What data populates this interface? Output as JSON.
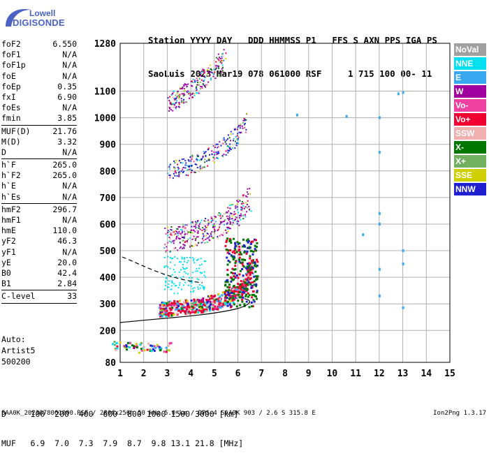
{
  "logo": {
    "top": "Lowell",
    "bottom": "DIGISONDE"
  },
  "header": {
    "line1": "Station YYYY DAY   DDD HHMMSS P1   FFS S AXN PPS IGA PS",
    "line2": "SaoLuis 2023 Mar19 078 061000 RSF     1 715 100 00- 11"
  },
  "params": [
    {
      "name": "foF2",
      "value": "6.550"
    },
    {
      "name": "foF1",
      "value": "N/A"
    },
    {
      "name": "foF1p",
      "value": "N/A"
    },
    {
      "name": "foE",
      "value": "N/A"
    },
    {
      "name": "foEp",
      "value": "0.35"
    },
    {
      "name": "fxI",
      "value": "6.90"
    },
    {
      "name": "foEs",
      "value": "N/A"
    },
    {
      "name": "fmin",
      "value": "3.85"
    },
    {
      "sep": true
    },
    {
      "name": "MUF(D)",
      "value": "21.76"
    },
    {
      "name": "M(D)",
      "value": "3.32"
    },
    {
      "name": "D",
      "value": "N/A"
    },
    {
      "sep": true
    },
    {
      "name": "h`F",
      "value": "265.0"
    },
    {
      "name": "h`F2",
      "value": "265.0"
    },
    {
      "name": "h`E",
      "value": "N/A"
    },
    {
      "name": "h`Es",
      "value": "N/A"
    },
    {
      "sep": true
    },
    {
      "name": "hmF2",
      "value": "296.7"
    },
    {
      "name": "hmF1",
      "value": "N/A"
    },
    {
      "name": "hmE",
      "value": "110.0"
    },
    {
      "name": "yF2",
      "value": "46.3"
    },
    {
      "name": "yF1",
      "value": "N/A"
    },
    {
      "name": "yE",
      "value": "20.0"
    },
    {
      "name": "B0",
      "value": "42.4"
    },
    {
      "name": "B1",
      "value": "2.84"
    },
    {
      "sep": true
    },
    {
      "name": "C-level",
      "value": "33"
    },
    {
      "sep": true
    }
  ],
  "auto": {
    "line1": "Auto:",
    "line2": "Artist5",
    "line3": "500200"
  },
  "legend": [
    {
      "label": "NoVal",
      "color": "#a0a0a0"
    },
    {
      "label": "NNE",
      "color": "#00e0f0"
    },
    {
      "label": "E",
      "color": "#39a8f0"
    },
    {
      "label": "W",
      "color": "#a000a0"
    },
    {
      "label": "Vo-",
      "color": "#f040a0"
    },
    {
      "label": "Vo+",
      "color": "#f00030"
    },
    {
      "label": "SSW",
      "color": "#f0b0b0"
    },
    {
      "label": "X-",
      "color": "#007800"
    },
    {
      "label": "X+",
      "color": "#70b060"
    },
    {
      "label": "SSE",
      "color": "#d0d000"
    },
    {
      "label": "NNW",
      "color": "#2020d0"
    }
  ],
  "bottom": {
    "line1": "D     100  200  400  600  800 1000 1500 3000 [km]",
    "line2": "MUF   6.9  7.0  7.3  7.9  8.7  9.8 13.1 21.8 [MHz]"
  },
  "footer": {
    "left": "SAA0K_2023078061000.RSF / 280fx256h 50 kHz 5.0 km / DPS-4 SAA0K 903 / 2.6 S 315.8 E",
    "right": "Ion2Png 1.3.17"
  },
  "chart_data": {
    "type": "scatter",
    "x_ticks": [
      1,
      2,
      3,
      4,
      5,
      6,
      7,
      8,
      9,
      10,
      11,
      12,
      13,
      14,
      15
    ],
    "y_ticks": [
      80,
      200,
      300,
      400,
      500,
      600,
      700,
      800,
      900,
      1000,
      1100,
      1280
    ],
    "xlim": [
      1,
      15
    ],
    "ylim": [
      80,
      1280
    ],
    "grid": true,
    "legend_placement": "right",
    "traces": [
      {
        "id": "F2-1st",
        "x": [
          2.7,
          3.0,
          3.5,
          4.0,
          4.5,
          5.0,
          5.5,
          6.0,
          6.3,
          6.55
        ],
        "y": [
          255,
          258,
          262,
          266,
          272,
          282,
          298,
          322,
          350,
          420
        ],
        "color": "#f00030"
      },
      {
        "id": "F2-2nd",
        "x": [
          2.9,
          3.5,
          4.0,
          4.5,
          5.0,
          5.5,
          6.0,
          6.5
        ],
        "y": [
          495,
          505,
          515,
          528,
          545,
          568,
          600,
          650
        ],
        "color": "#a000a0"
      },
      {
        "id": "F2-3rd",
        "x": [
          3.0,
          3.5,
          4.0,
          4.5,
          5.0,
          5.5,
          6.0,
          6.3
        ],
        "y": [
          760,
          775,
          790,
          805,
          830,
          860,
          905,
          960
        ],
        "color": "#2020d0"
      },
      {
        "id": "F2-4th",
        "x": [
          3.0,
          3.5,
          4.0,
          4.5,
          5.0,
          5.4
        ],
        "y": [
          1020,
          1045,
          1075,
          1110,
          1150,
          1190
        ],
        "color": "#a000a0"
      }
    ],
    "profile": {
      "x": [
        1.0,
        2.0,
        3.0,
        4.0,
        5.0,
        5.8,
        6.4,
        6.55,
        6.3
      ],
      "y": [
        245,
        252,
        260,
        268,
        278,
        290,
        300,
        310,
        320
      ]
    },
    "e_region": {
      "x": [
        1.0,
        1.5,
        2.0,
        2.5,
        2.8
      ],
      "y": [
        145,
        142,
        138,
        140,
        138
      ]
    }
  }
}
